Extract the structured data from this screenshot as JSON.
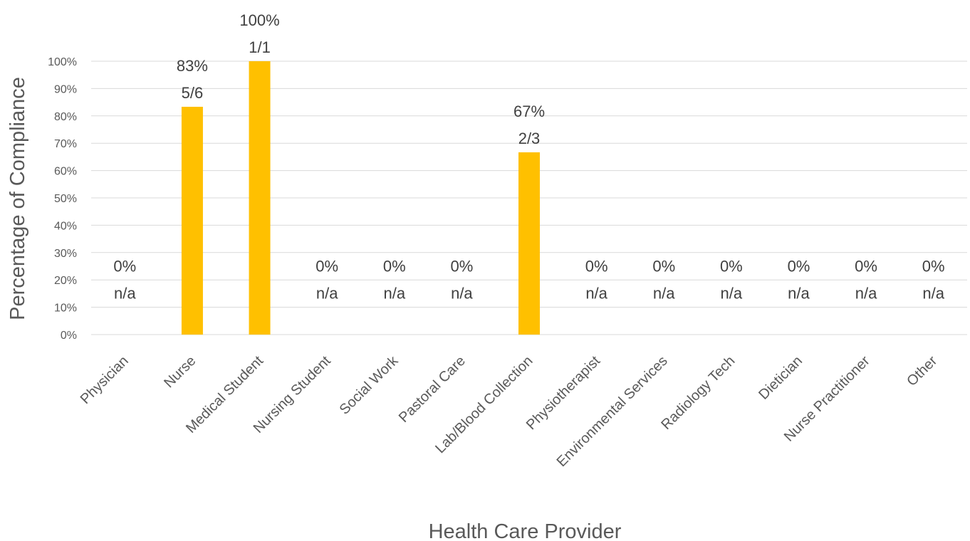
{
  "chart_data": {
    "type": "bar",
    "title": "",
    "xlabel": "Health Care Provider",
    "ylabel": "Percentage of Compliance",
    "ylim": [
      0,
      100
    ],
    "y_ticks": [
      "0%",
      "10%",
      "20%",
      "30%",
      "40%",
      "50%",
      "60%",
      "70%",
      "80%",
      "90%",
      "100%"
    ],
    "grid": true,
    "bar_color": "#FFC000",
    "categories": [
      "Physician",
      "Nurse",
      "Medical Student",
      "Nursing Student",
      "Social Work",
      "Pastoral Care",
      "Lab/Blood Collection",
      "Physiotherapist",
      "Environmental Services",
      "Radiology Tech",
      "Dietician",
      "Nurse Practitioner",
      "Other"
    ],
    "values": [
      0,
      83.33,
      100,
      0,
      0,
      0,
      66.67,
      0,
      0,
      0,
      0,
      0,
      0
    ],
    "value_labels": [
      "0%",
      "83%",
      "100%",
      "0%",
      "0%",
      "0%",
      "67%",
      "0%",
      "0%",
      "0%",
      "0%",
      "0%",
      "0%"
    ],
    "count_labels": [
      "n/a",
      "5/6",
      "1/1",
      "n/a",
      "n/a",
      "n/a",
      "2/3",
      "n/a",
      "n/a",
      "n/a",
      "n/a",
      "n/a",
      "n/a"
    ]
  }
}
